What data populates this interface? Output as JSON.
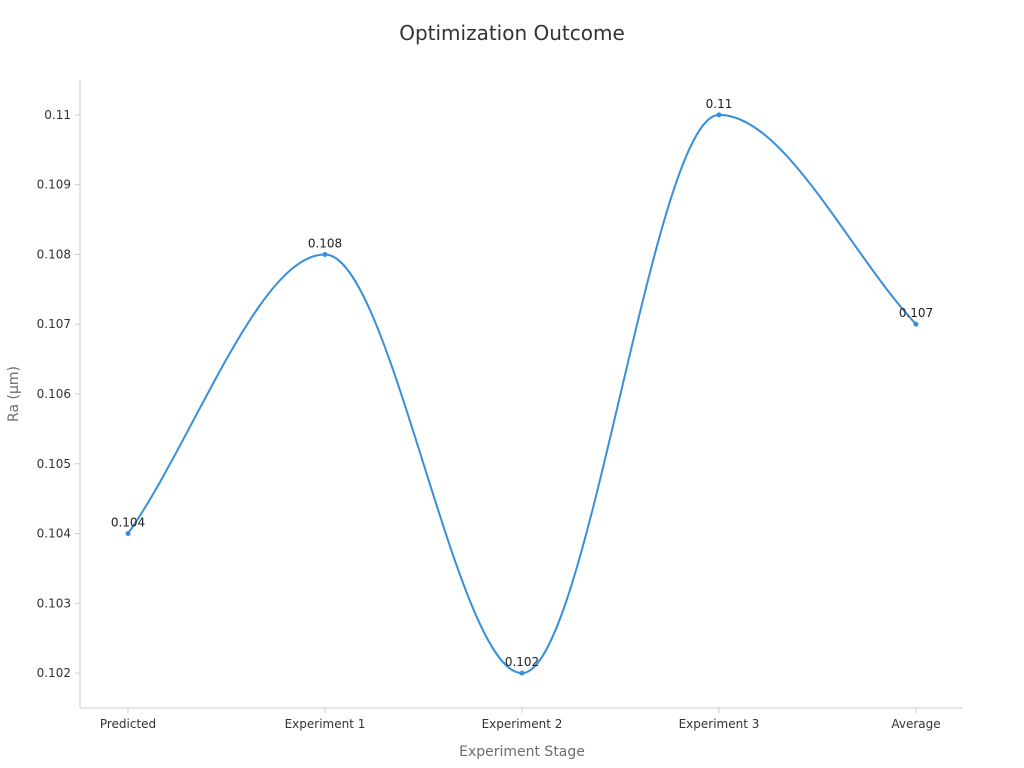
{
  "chart_data": {
    "type": "line",
    "title": "Optimization Outcome",
    "xlabel": "Experiment Stage",
    "ylabel": "Ra (μm)",
    "categories": [
      "Predicted",
      "Experiment 1",
      "Experiment 2",
      "Experiment 3",
      "Average"
    ],
    "series": [
      {
        "values": [
          0.104,
          0.108,
          0.102,
          0.11,
          0.107
        ],
        "color": "#3a8fd9"
      }
    ],
    "data_labels": [
      "0.104",
      "0.108",
      "0.102",
      "0.11",
      "0.107"
    ],
    "ylim": [
      0.1015,
      0.1105
    ],
    "yticks": [
      0.102,
      0.103,
      0.104,
      0.105,
      0.106,
      0.107,
      0.108,
      0.109,
      0.11
    ],
    "ytick_labels": [
      "0.102",
      "0.103",
      "0.104",
      "0.105",
      "0.106",
      "0.107",
      "0.108",
      "0.109",
      "0.11"
    ],
    "grid": false,
    "smooth": true
  }
}
